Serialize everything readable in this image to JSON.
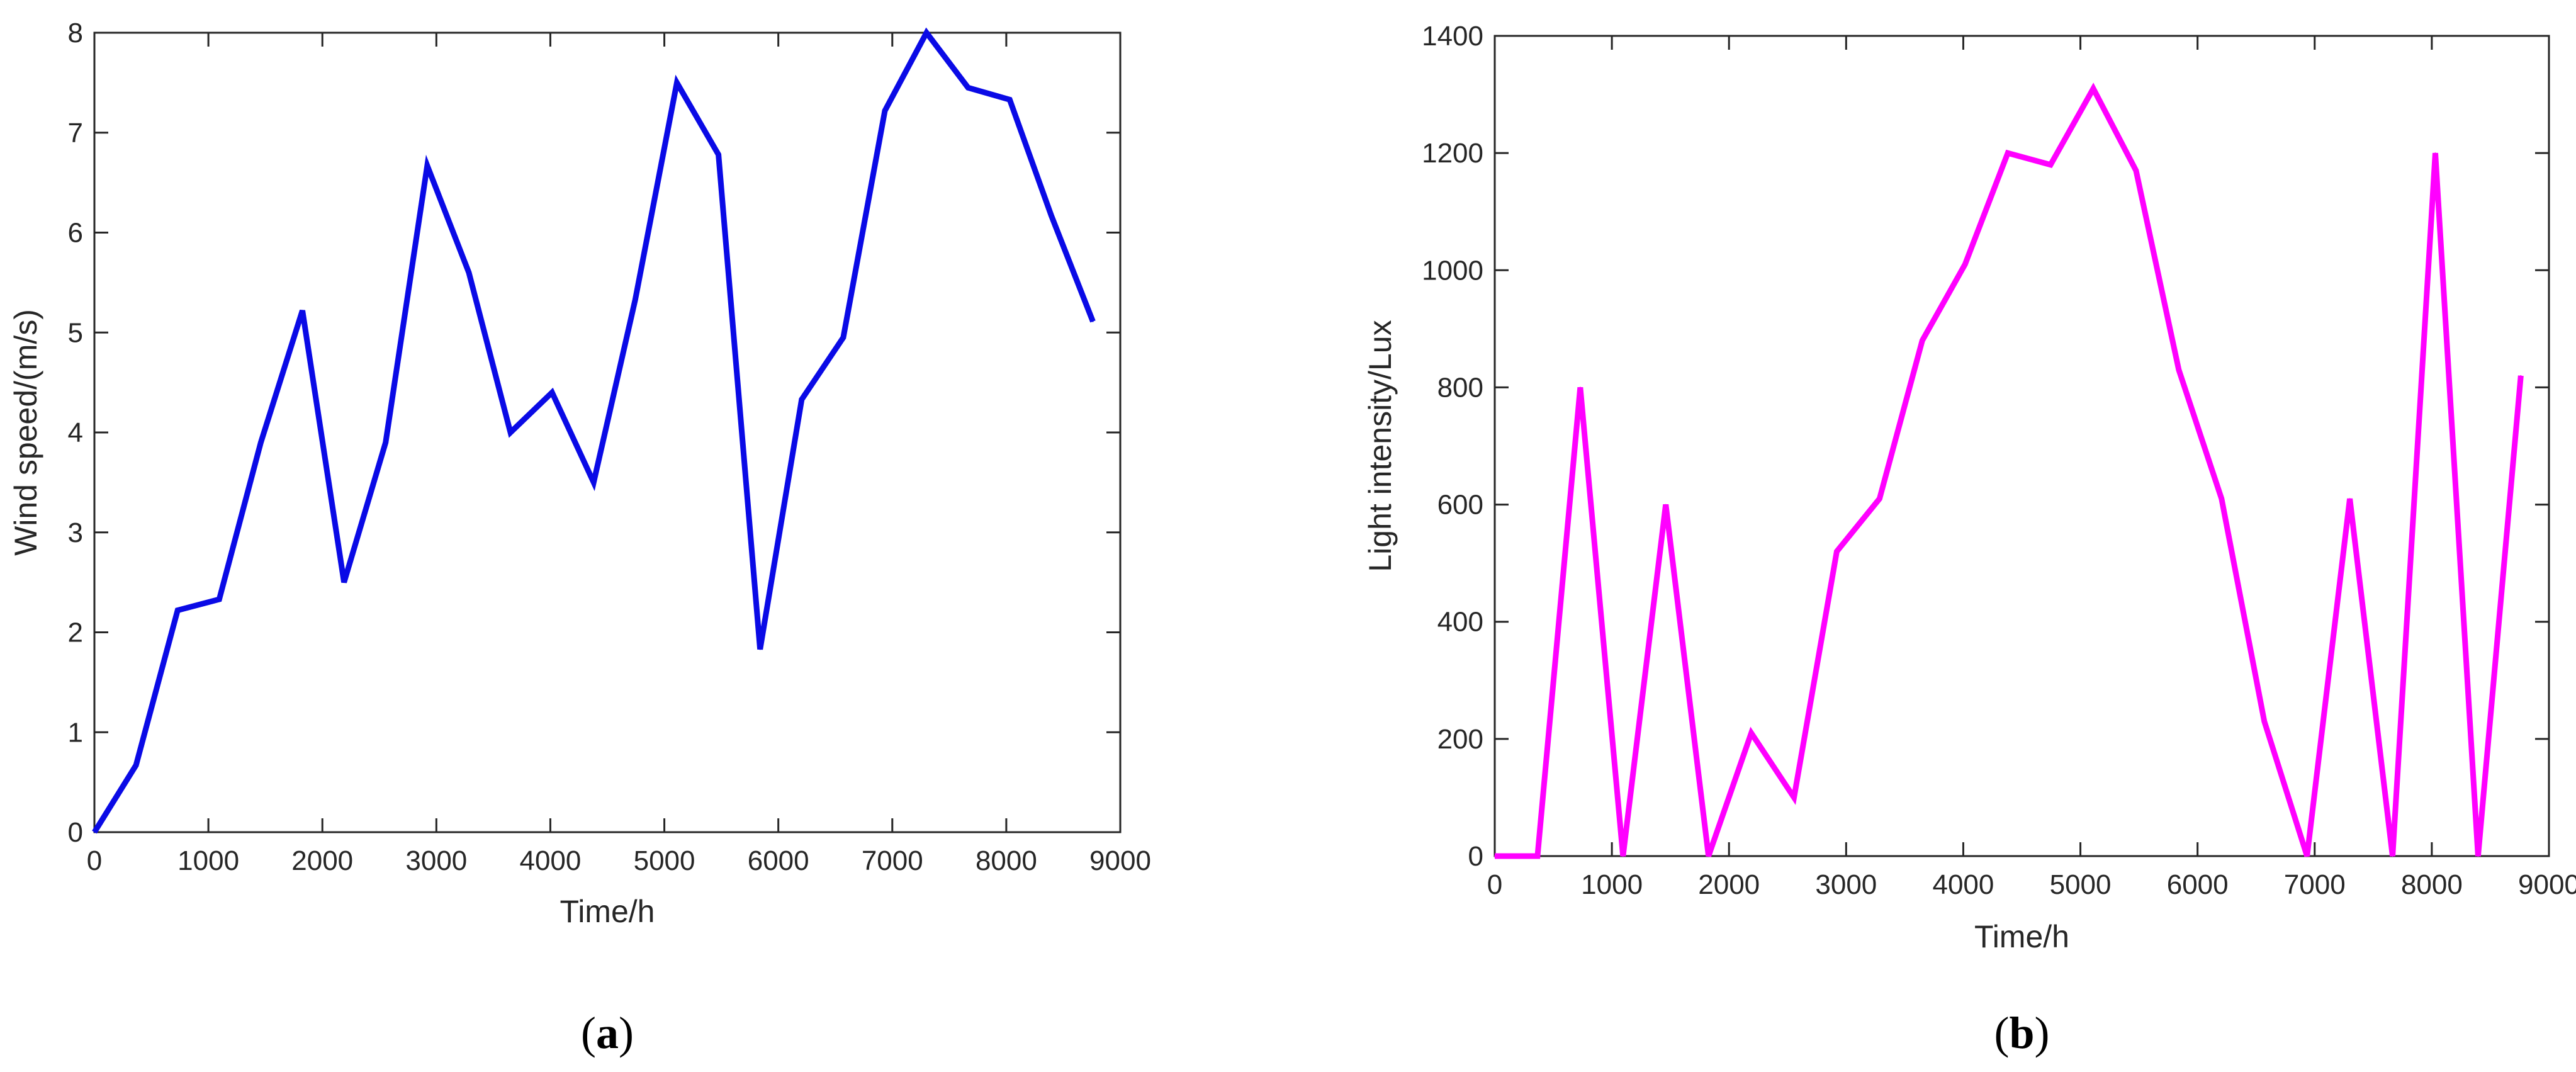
{
  "chart_data": [
    {
      "type": "line",
      "panel_label": "a",
      "xlabel": "Time/h",
      "ylabel": "Wind speed/(m/s)",
      "xlim": [
        0,
        9000
      ],
      "ylim": [
        0,
        8
      ],
      "xticks": [
        0,
        1000,
        2000,
        3000,
        4000,
        5000,
        6000,
        7000,
        8000,
        9000
      ],
      "yticks": [
        0,
        1,
        2,
        3,
        4,
        5,
        6,
        7,
        8
      ],
      "grid": false,
      "color": "#0a0ae6",
      "series": [
        {
          "x": [
            0,
            365,
            730,
            1095,
            1460,
            1825,
            2190,
            2555,
            2920,
            3285,
            3650,
            4015,
            4380,
            4745,
            5110,
            5475,
            5840,
            6205,
            6570,
            6935,
            7300,
            7665,
            8030,
            8395,
            8760
          ],
          "y": [
            0,
            0.67,
            2.22,
            2.33,
            3.9,
            5.22,
            2.5,
            3.9,
            6.67,
            5.6,
            4.0,
            4.4,
            3.5,
            5.33,
            7.5,
            6.78,
            1.83,
            4.33,
            4.95,
            7.22,
            8.0,
            7.45,
            7.33,
            6.17,
            5.11
          ]
        }
      ]
    },
    {
      "type": "line",
      "panel_label": "b",
      "xlabel": "Time/h",
      "ylabel": "Light intensity/Lux",
      "xlim": [
        0,
        9000
      ],
      "ylim": [
        0,
        1400
      ],
      "xticks": [
        0,
        1000,
        2000,
        3000,
        4000,
        5000,
        6000,
        7000,
        8000,
        9000
      ],
      "yticks": [
        0,
        200,
        400,
        600,
        800,
        1000,
        1200,
        1400
      ],
      "grid": false,
      "color": "#ff00ff",
      "series": [
        {
          "x": [
            0,
            365,
            730,
            1095,
            1460,
            1825,
            2190,
            2555,
            2920,
            3285,
            3650,
            4015,
            4380,
            4745,
            5110,
            5475,
            5840,
            6205,
            6570,
            6935,
            7300,
            7665,
            8030,
            8395,
            8760
          ],
          "y": [
            0,
            0,
            800,
            0,
            600,
            0,
            210,
            100,
            520,
            610,
            880,
            1010,
            1200,
            1180,
            1310,
            1170,
            830,
            610,
            230,
            0,
            610,
            0,
            1200,
            0,
            820
          ]
        }
      ]
    }
  ]
}
